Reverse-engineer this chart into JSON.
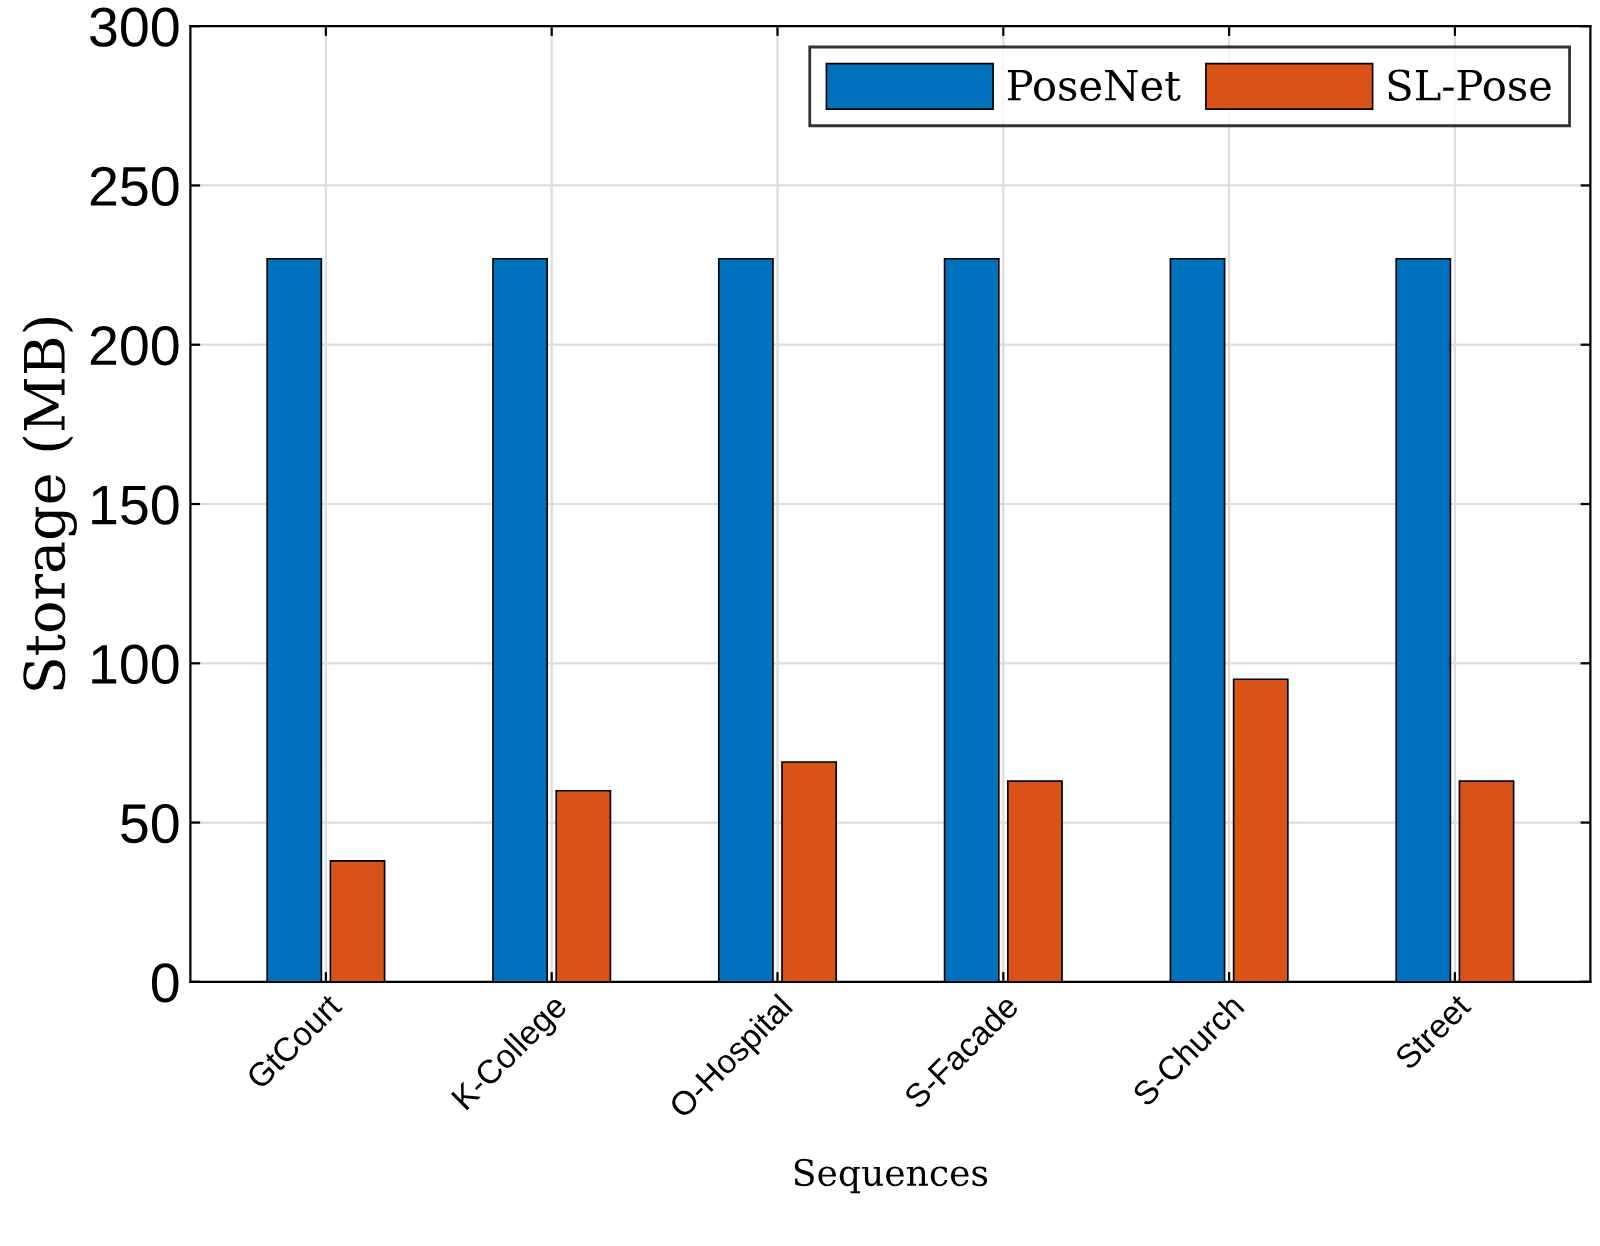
{
  "chart_data": {
    "type": "bar",
    "xlabel": "Sequences",
    "ylabel": "Storage (MB)",
    "categories": [
      "GtCourt",
      "K-College",
      "O-Hospital",
      "S-Facade",
      "S-Church",
      "Street"
    ],
    "series": [
      {
        "name": "PoseNet",
        "color": "#0072bd",
        "values": [
          227,
          227,
          227,
          227,
          227,
          227
        ]
      },
      {
        "name": "SL-Pose",
        "color": "#d95319",
        "values": [
          38,
          60,
          69,
          63,
          95,
          63
        ]
      }
    ],
    "ylim": [
      0,
      300
    ],
    "yticks": [
      0,
      50,
      100,
      150,
      200,
      250,
      300
    ],
    "grid": true,
    "legend": "top right"
  }
}
